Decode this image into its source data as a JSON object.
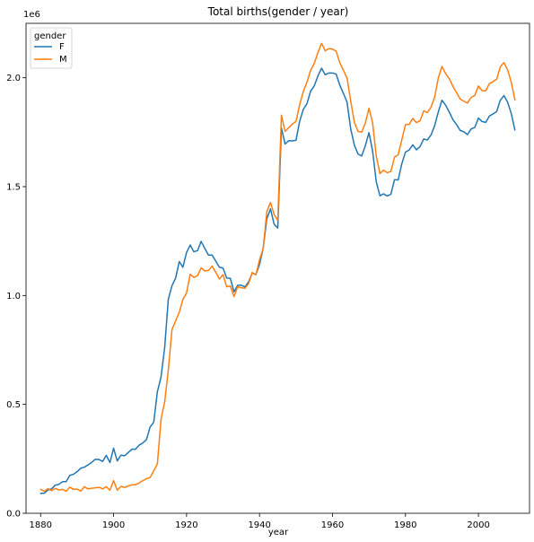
{
  "chart_data": {
    "type": "line",
    "title": "Total births(gender / year)",
    "xlabel": "year",
    "ylabel": "",
    "y_offset_label": "1e6",
    "xlim": [
      1876,
      2014
    ],
    "ylim": [
      0,
      2.25
    ],
    "x_ticks": [
      1880,
      1900,
      1920,
      1940,
      1960,
      1980,
      2000
    ],
    "y_ticks": [
      0.0,
      0.5,
      1.0,
      1.5,
      2.0
    ],
    "y_tick_labels": [
      "0.0",
      "0.5",
      "1.0",
      "1.5",
      "2.0"
    ],
    "grid": false,
    "legend": {
      "title": "gender",
      "position": "top-left"
    },
    "x": [
      1880,
      1881,
      1882,
      1883,
      1884,
      1885,
      1886,
      1887,
      1888,
      1889,
      1890,
      1891,
      1892,
      1893,
      1894,
      1895,
      1896,
      1897,
      1898,
      1899,
      1900,
      1901,
      1902,
      1903,
      1904,
      1905,
      1906,
      1907,
      1908,
      1909,
      1910,
      1911,
      1912,
      1913,
      1914,
      1915,
      1916,
      1917,
      1918,
      1919,
      1920,
      1921,
      1922,
      1923,
      1924,
      1925,
      1926,
      1927,
      1928,
      1929,
      1930,
      1931,
      1932,
      1933,
      1934,
      1935,
      1936,
      1937,
      1938,
      1939,
      1940,
      1941,
      1942,
      1943,
      1944,
      1945,
      1946,
      1947,
      1948,
      1949,
      1950,
      1951,
      1952,
      1953,
      1954,
      1955,
      1956,
      1957,
      1958,
      1959,
      1960,
      1961,
      1962,
      1963,
      1964,
      1965,
      1966,
      1967,
      1968,
      1969,
      1970,
      1971,
      1972,
      1973,
      1974,
      1975,
      1976,
      1977,
      1978,
      1979,
      1980,
      1981,
      1982,
      1983,
      1984,
      1985,
      1986,
      1987,
      1988,
      1989,
      1990,
      1991,
      1992,
      1993,
      1994,
      1995,
      1996,
      1997,
      1998,
      1999,
      2000,
      2001,
      2002,
      2003,
      2004,
      2005,
      2006,
      2007,
      2008,
      2009,
      2010
    ],
    "series": [
      {
        "name": "F",
        "color": "#1f77b4",
        "values": [
          0.091,
          0.092,
          0.107,
          0.112,
          0.129,
          0.133,
          0.145,
          0.145,
          0.174,
          0.179,
          0.191,
          0.207,
          0.212,
          0.222,
          0.234,
          0.248,
          0.247,
          0.238,
          0.266,
          0.233,
          0.299,
          0.24,
          0.267,
          0.264,
          0.279,
          0.294,
          0.294,
          0.313,
          0.323,
          0.338,
          0.396,
          0.418,
          0.558,
          0.625,
          0.761,
          0.983,
          1.045,
          1.08,
          1.156,
          1.13,
          1.198,
          1.232,
          1.201,
          1.206,
          1.249,
          1.216,
          1.186,
          1.186,
          1.158,
          1.13,
          1.126,
          1.08,
          1.079,
          1.017,
          1.047,
          1.047,
          1.04,
          1.063,
          1.104,
          1.096,
          1.143,
          1.217,
          1.352,
          1.398,
          1.328,
          1.31,
          1.77,
          1.696,
          1.711,
          1.71,
          1.713,
          1.8,
          1.855,
          1.881,
          1.938,
          1.963,
          2.008,
          2.044,
          2.014,
          2.022,
          2.022,
          2.017,
          1.966,
          1.928,
          1.887,
          1.765,
          1.69,
          1.65,
          1.641,
          1.688,
          1.748,
          1.663,
          1.522,
          1.458,
          1.467,
          1.457,
          1.465,
          1.532,
          1.531,
          1.605,
          1.659,
          1.668,
          1.692,
          1.669,
          1.684,
          1.719,
          1.714,
          1.737,
          1.78,
          1.843,
          1.897,
          1.874,
          1.843,
          1.808,
          1.785,
          1.758,
          1.752,
          1.739,
          1.765,
          1.772,
          1.815,
          1.799,
          1.795,
          1.824,
          1.834,
          1.845,
          1.897,
          1.918,
          1.888,
          1.836,
          1.76
        ]
      },
      {
        "name": "M",
        "color": "#ff7f0e",
        "values": [
          0.11,
          0.101,
          0.113,
          0.104,
          0.114,
          0.107,
          0.11,
          0.101,
          0.12,
          0.11,
          0.111,
          0.102,
          0.122,
          0.112,
          0.115,
          0.117,
          0.119,
          0.112,
          0.122,
          0.106,
          0.15,
          0.106,
          0.123,
          0.119,
          0.125,
          0.131,
          0.131,
          0.139,
          0.15,
          0.159,
          0.164,
          0.195,
          0.226,
          0.431,
          0.512,
          0.657,
          0.844,
          0.883,
          0.923,
          0.982,
          1.012,
          1.098,
          1.083,
          1.091,
          1.127,
          1.113,
          1.115,
          1.135,
          1.107,
          1.076,
          1.096,
          1.04,
          1.044,
          0.995,
          1.04,
          1.036,
          1.033,
          1.055,
          1.106,
          1.095,
          1.164,
          1.216,
          1.386,
          1.427,
          1.372,
          1.345,
          1.828,
          1.754,
          1.771,
          1.787,
          1.8,
          1.876,
          1.937,
          1.98,
          2.034,
          2.066,
          2.115,
          2.158,
          2.124,
          2.134,
          2.132,
          2.122,
          2.069,
          2.034,
          1.998,
          1.893,
          1.795,
          1.754,
          1.75,
          1.792,
          1.86,
          1.792,
          1.64,
          1.56,
          1.576,
          1.564,
          1.57,
          1.636,
          1.646,
          1.715,
          1.785,
          1.786,
          1.813,
          1.794,
          1.803,
          1.848,
          1.84,
          1.865,
          1.911,
          1.999,
          2.052,
          2.019,
          1.996,
          1.961,
          1.932,
          1.903,
          1.892,
          1.884,
          1.91,
          1.919,
          1.962,
          1.941,
          1.94,
          1.973,
          1.982,
          1.994,
          2.05,
          2.07,
          2.036,
          1.98,
          1.898
        ]
      }
    ]
  }
}
